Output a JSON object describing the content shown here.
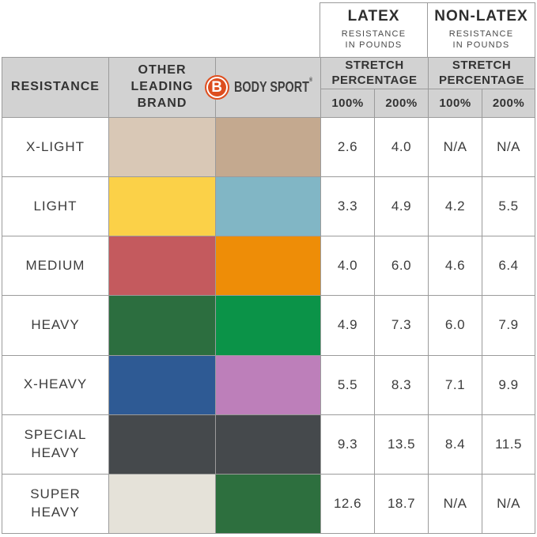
{
  "top_headers": {
    "latex": {
      "title": "LATEX",
      "subtitle": "RESISTANCE\nIN POUNDS"
    },
    "nonlatex": {
      "title": "NON-LATEX",
      "subtitle": "RESISTANCE\nIN POUNDS"
    }
  },
  "header": {
    "resistance_label": "RESISTANCE",
    "other_brand_label": "OTHER\nLEADING\nBRAND",
    "brand": {
      "logo_letter": "B",
      "name": "BODY SPORT",
      "registered_mark": "®",
      "logo_color": "#dd4e1f"
    },
    "stretch_label": "STRETCH\nPERCENTAGE",
    "pct_columns": [
      "100%",
      "200%",
      "100%",
      "200%"
    ]
  },
  "rows": [
    {
      "label": "X-LIGHT",
      "other_color": "#d9c8b6",
      "bodysport_color": "#c4a98f",
      "values": [
        "2.6",
        "4.0",
        "N/A",
        "N/A"
      ]
    },
    {
      "label": "LIGHT",
      "other_color": "#fbd148",
      "bodysport_color": "#81b6c5",
      "values": [
        "3.3",
        "4.9",
        "4.2",
        "5.5"
      ]
    },
    {
      "label": "MEDIUM",
      "other_color": "#c45a5e",
      "bodysport_color": "#ee8d07",
      "values": [
        "4.0",
        "6.0",
        "4.6",
        "6.4"
      ]
    },
    {
      "label": "HEAVY",
      "other_color": "#2c6e3f",
      "bodysport_color": "#0b9348",
      "values": [
        "4.9",
        "7.3",
        "6.0",
        "7.9"
      ]
    },
    {
      "label": "X-HEAVY",
      "other_color": "#2e5a94",
      "bodysport_color": "#bd7fba",
      "values": [
        "5.5",
        "8.3",
        "7.1",
        "9.9"
      ]
    },
    {
      "label": "SPECIAL\nHEAVY",
      "other_color": "#45494c",
      "bodysport_color": "#45494c",
      "values": [
        "9.3",
        "13.5",
        "8.4",
        "11.5"
      ]
    },
    {
      "label": "SUPER\nHEAVY",
      "other_color": "#e5e2d9",
      "bodysport_color": "#2d6f3e",
      "values": [
        "12.6",
        "18.7",
        "N/A",
        "N/A"
      ]
    }
  ],
  "colors": {
    "header_bg": "#d2d2d2",
    "border": "#9b9b9b",
    "text": "#3a3a3a"
  },
  "chart_data": {
    "type": "table",
    "title": "Body Sport vs Other Leading Brand resistance band comparison",
    "columns": [
      "RESISTANCE",
      "OTHER LEADING BRAND",
      "BODY SPORT",
      "LATEX 100%",
      "LATEX 200%",
      "NON-LATEX 100%",
      "NON-LATEX 200%"
    ],
    "rows": [
      [
        "X-LIGHT",
        "2.6",
        "4.0",
        "N/A",
        "N/A"
      ],
      [
        "LIGHT",
        "3.3",
        "4.9",
        "4.2",
        "5.5"
      ],
      [
        "MEDIUM",
        "4.0",
        "6.0",
        "4.6",
        "6.4"
      ],
      [
        "HEAVY",
        "4.9",
        "7.3",
        "6.0",
        "7.9"
      ],
      [
        "X-HEAVY",
        "5.5",
        "8.3",
        "7.1",
        "9.9"
      ],
      [
        "SPECIAL HEAVY",
        "9.3",
        "13.5",
        "8.4",
        "11.5"
      ],
      [
        "SUPER HEAVY",
        "12.6",
        "18.7",
        "N/A",
        "N/A"
      ]
    ]
  }
}
